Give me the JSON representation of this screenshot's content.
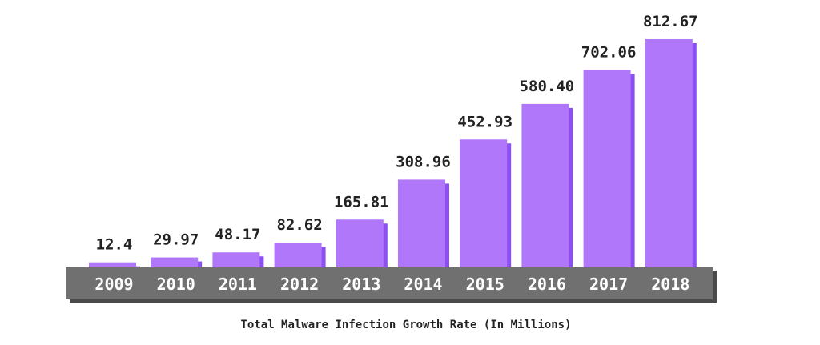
{
  "chart_data": {
    "type": "bar",
    "title": "Total Malware Infection Growth Rate (In Millions)",
    "categories": [
      "2009",
      "2010",
      "2011",
      "2012",
      "2013",
      "2014",
      "2015",
      "2016",
      "2017",
      "2018"
    ],
    "values": [
      12.4,
      29.97,
      48.17,
      82.62,
      165.81,
      308.96,
      452.93,
      580.4,
      702.06,
      812.67
    ],
    "value_labels": [
      "12.4",
      "29.97",
      "48.17",
      "82.62",
      "165.81",
      "308.96",
      "452.93",
      "580.40",
      "702.06",
      "812.67"
    ],
    "ylim": [
      0,
      812.67
    ],
    "grid": false,
    "legend": "none"
  },
  "colors": {
    "bar": "#b177fb",
    "bar_shadow": "#8c4ff0",
    "axis_band": "#707070",
    "axis_band_shadow": "#4a4a4a"
  }
}
